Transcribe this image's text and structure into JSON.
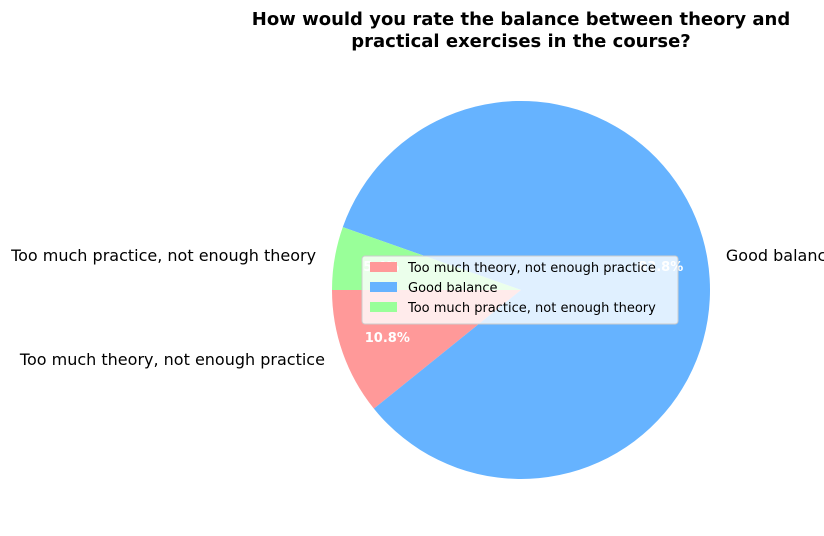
{
  "chart_data": {
    "type": "pie",
    "title": [
      "How would you rate the balance between theory and",
      "practical exercises in the course?"
    ],
    "categories": [
      "Too much theory, not enough practice",
      "Good balance",
      "Too much practice, not enough theory"
    ],
    "values": [
      10.8,
      83.8,
      5.4
    ],
    "value_labels": [
      "10.8%",
      "83.8%",
      "5.4%"
    ],
    "colors": [
      "#ff9999",
      "#66b3ff",
      "#99ff99"
    ],
    "legend": {
      "placement": "center-right",
      "entries": [
        "Too much theory, not enough practice",
        "Good balance",
        "Too much practice, not enough theory"
      ]
    }
  }
}
